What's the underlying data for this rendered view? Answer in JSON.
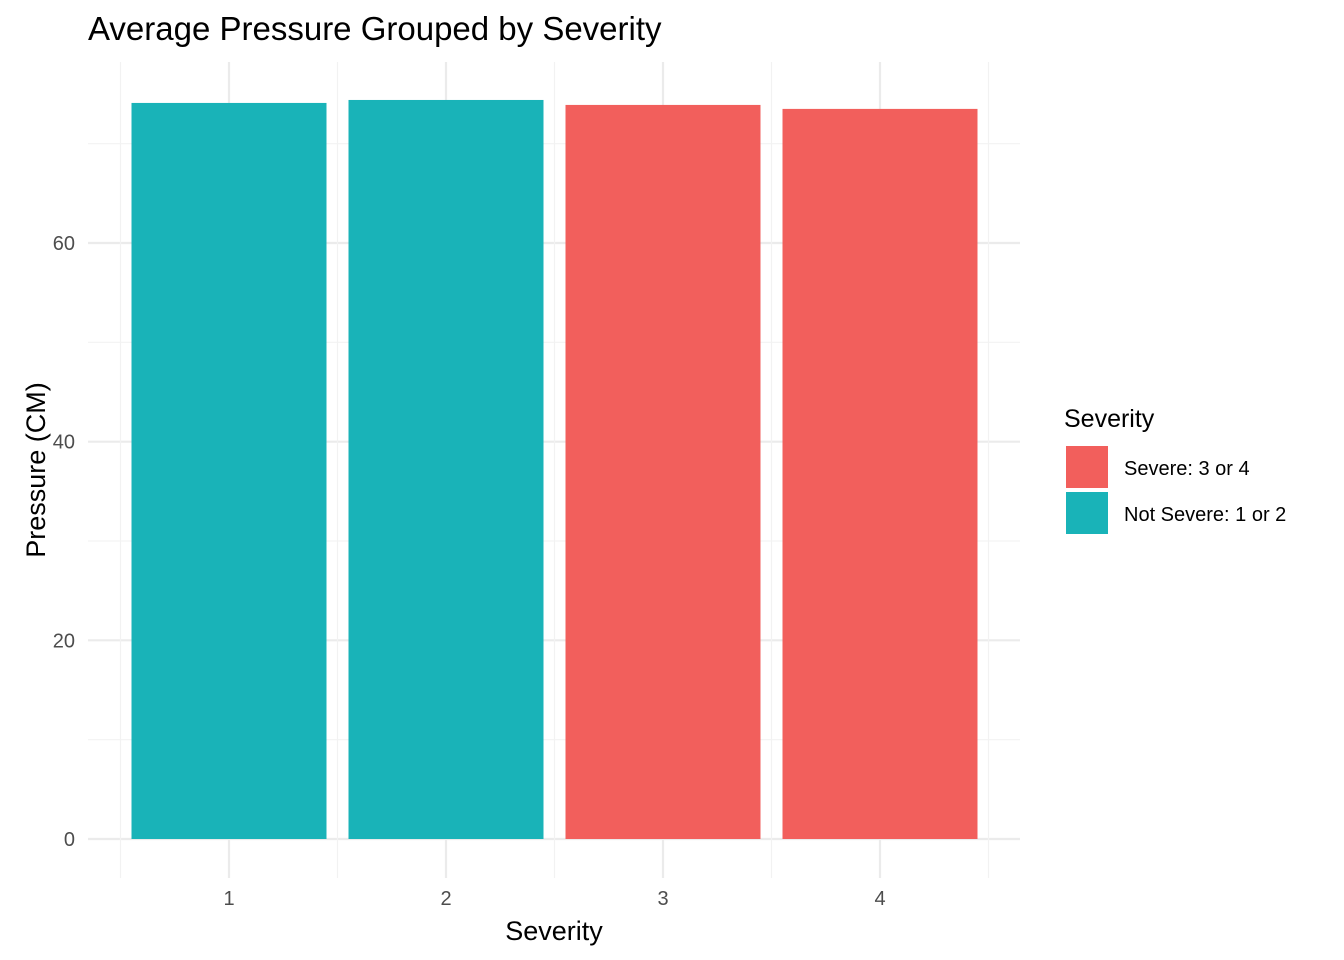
{
  "chart_data": {
    "type": "bar",
    "title": "Average Pressure Grouped by Severity",
    "xlabel": "Severity",
    "ylabel": "Pressure (CM)",
    "categories": [
      "1",
      "2",
      "3",
      "4"
    ],
    "values": [
      74.1,
      74.4,
      73.9,
      73.5
    ],
    "bar_groups": [
      "Not Severe: 1 or 2",
      "Not Severe: 1 or 2",
      "Severe: 3 or 4",
      "Severe: 3 or 4"
    ],
    "ylim": [
      0,
      78
    ],
    "yticks": [
      0,
      20,
      40,
      60
    ],
    "grid": true,
    "legend": {
      "title": "Severity",
      "placement": "right",
      "items": [
        {
          "label": "Severe: 3 or 4",
          "color": "#F25F5C"
        },
        {
          "label": "Not Severe: 1 or 2",
          "color": "#19B3B8"
        }
      ]
    }
  }
}
